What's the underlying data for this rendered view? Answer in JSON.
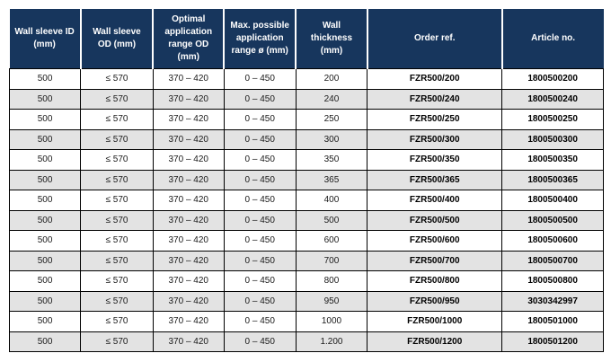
{
  "colors": {
    "header_background": "#17365d",
    "header_text": "#ffffff",
    "row_alt_background": "#e3e3e3",
    "row_background": "#ffffff",
    "grid_border": "#000000",
    "body_text": "#1a1a1a"
  },
  "table": {
    "columns": [
      {
        "id": "wall-sleeve-id",
        "label": "Wall sleeve ID (mm)",
        "bold": false
      },
      {
        "id": "wall-sleeve-od",
        "label": "Wall sleeve OD (mm)",
        "bold": false
      },
      {
        "id": "optimal-range-od",
        "label": "Optimal application range OD (mm)",
        "bold": false
      },
      {
        "id": "max-range",
        "label": "Max. possible application range ø (mm)",
        "bold": false
      },
      {
        "id": "wall-thickness",
        "label": "Wall thickness (mm)",
        "bold": false
      },
      {
        "id": "order-ref",
        "label": "Order ref.",
        "bold": true
      },
      {
        "id": "article-no",
        "label": "Article no.",
        "bold": true
      }
    ],
    "rows": [
      [
        "500",
        "≤ 570",
        "370 – 420",
        "0 – 450",
        "200",
        "FZR500/200",
        "1800500200"
      ],
      [
        "500",
        "≤ 570",
        "370 – 420",
        "0 – 450",
        "240",
        "FZR500/240",
        "1800500240"
      ],
      [
        "500",
        "≤ 570",
        "370 – 420",
        "0 – 450",
        "250",
        "FZR500/250",
        "1800500250"
      ],
      [
        "500",
        "≤ 570",
        "370 – 420",
        "0 – 450",
        "300",
        "FZR500/300",
        "1800500300"
      ],
      [
        "500",
        "≤ 570",
        "370 – 420",
        "0 – 450",
        "350",
        "FZR500/350",
        "1800500350"
      ],
      [
        "500",
        "≤ 570",
        "370 – 420",
        "0 – 450",
        "365",
        "FZR500/365",
        "1800500365"
      ],
      [
        "500",
        "≤ 570",
        "370 – 420",
        "0 – 450",
        "400",
        "FZR500/400",
        "1800500400"
      ],
      [
        "500",
        "≤ 570",
        "370 – 420",
        "0 – 450",
        "500",
        "FZR500/500",
        "1800500500"
      ],
      [
        "500",
        "≤ 570",
        "370 – 420",
        "0 – 450",
        "600",
        "FZR500/600",
        "1800500600"
      ],
      [
        "500",
        "≤ 570",
        "370 – 420",
        "0 – 450",
        "700",
        "FZR500/700",
        "1800500700"
      ],
      [
        "500",
        "≤ 570",
        "370 – 420",
        "0 – 450",
        "800",
        "FZR500/800",
        "1800500800"
      ],
      [
        "500",
        "≤ 570",
        "370 – 420",
        "0 – 450",
        "950",
        "FZR500/950",
        "3030342997"
      ],
      [
        "500",
        "≤ 570",
        "370 – 420",
        "0 – 450",
        "1000",
        "FZR500/1000",
        "1800501000"
      ],
      [
        "500",
        "≤ 570",
        "370 – 420",
        "0 – 450",
        "1.200",
        "FZR500/1200",
        "1800501200"
      ]
    ]
  }
}
